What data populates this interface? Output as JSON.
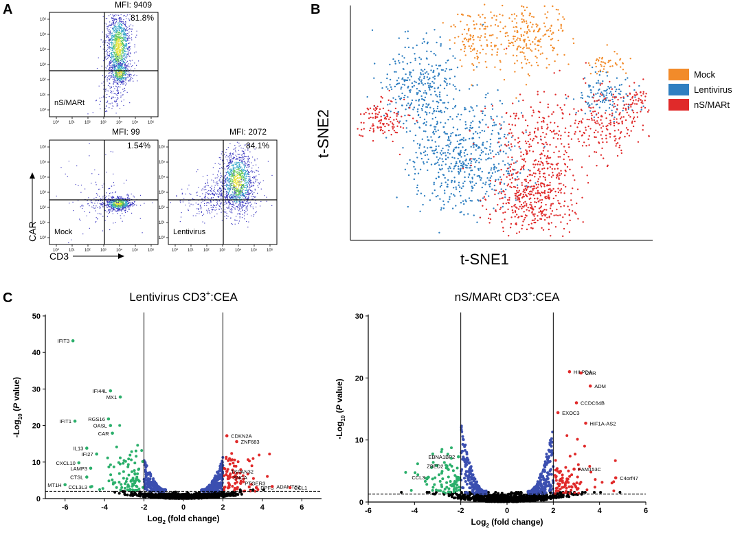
{
  "panels": {
    "a": {
      "label": "A",
      "plots": [
        {
          "key": "nsmart",
          "mfi": "MFI: 9409",
          "pct": "81.8%",
          "sample": "nS/MARt"
        },
        {
          "key": "mock",
          "mfi": "MFI: 99",
          "pct": "1.54%",
          "sample": "Mock"
        },
        {
          "key": "lenti",
          "mfi": "MFI: 2072",
          "pct": "84.1%",
          "sample": "Lentivirus"
        }
      ],
      "y_axis_label": "CAR",
      "x_axis_label": "CD3",
      "ticks": [
        "10⁰",
        "10¹",
        "10²",
        "10³",
        "10⁴",
        "10⁵",
        "10⁶"
      ]
    },
    "b": {
      "label": "B",
      "xlabel": "t-SNE1",
      "ylabel": "t-SNE2",
      "legend": [
        {
          "name": "Mock",
          "color": "#F28B2A"
        },
        {
          "name": "Lentivirus",
          "color": "#2F7FC1"
        },
        {
          "name": "nS/MARt",
          "color": "#E02A2A"
        }
      ]
    },
    "c": {
      "label": "C",
      "axis_ylabel": "-Log10 (P value)",
      "axis_xlabel": "Log2 (fold change)"
    }
  },
  "colors": {
    "up": "#E02A2A",
    "down": "#2BAF6B",
    "ns_fc": "#3B4FB0",
    "ns": "#000000"
  },
  "chart_data": [
    {
      "type": "scatter",
      "title": "Lentivirus CD3+:CEA",
      "xlabel": "Log2 (fold change)",
      "ylabel": "-Log10 (P value)",
      "xlim": [
        -7,
        7
      ],
      "ylim": [
        0,
        50
      ],
      "xticks": [
        -6,
        -4,
        -2,
        0,
        2,
        4,
        6
      ],
      "yticks": [
        0,
        10,
        20,
        30,
        40,
        50
      ],
      "fc_threshold": [
        -2,
        2
      ],
      "p_threshold": 2,
      "genes": [
        {
          "name": "IFIT3",
          "x": -5.6,
          "y": 43.2,
          "dir": "down"
        },
        {
          "name": "IFI44L",
          "x": -3.7,
          "y": 29.5,
          "dir": "down"
        },
        {
          "name": "MX1",
          "x": -3.2,
          "y": 27.8,
          "dir": "down"
        },
        {
          "name": "IFIT1",
          "x": -5.5,
          "y": 21.2,
          "dir": "down"
        },
        {
          "name": "RGS16",
          "x": -3.8,
          "y": 21.8,
          "dir": "down"
        },
        {
          "name": "OASL",
          "x": -3.7,
          "y": 20.0,
          "dir": "down"
        },
        {
          "name": "CAR",
          "x": -3.6,
          "y": 17.9,
          "dir": "down"
        },
        {
          "name": "IL13",
          "x": -4.9,
          "y": 13.8,
          "dir": "down"
        },
        {
          "name": "IFI27",
          "x": -4.4,
          "y": 12.2,
          "dir": "down"
        },
        {
          "name": "CXCL10",
          "x": -5.3,
          "y": 9.8,
          "dir": "down"
        },
        {
          "name": "LAMP3",
          "x": -4.7,
          "y": 8.3,
          "dir": "down"
        },
        {
          "name": "CTSL",
          "x": -4.9,
          "y": 5.9,
          "dir": "down"
        },
        {
          "name": "MT1H",
          "x": -6.0,
          "y": 3.8,
          "dir": "down"
        },
        {
          "name": "CCL3L3",
          "x": -4.7,
          "y": 3.2,
          "dir": "down"
        },
        {
          "name": "CDKN2A",
          "x": 2.2,
          "y": 17.2,
          "dir": "up"
        },
        {
          "name": "ZNF683",
          "x": 2.7,
          "y": 15.6,
          "dir": "up"
        },
        {
          "name": "TSPAN32",
          "x": 2.2,
          "y": 7.4,
          "dir": "up"
        },
        {
          "name": "SNCA",
          "x": 2.3,
          "y": 5.8,
          "dir": "up"
        },
        {
          "name": "PTGER3",
          "x": 2.9,
          "y": 4.2,
          "dir": "up"
        },
        {
          "name": "DPF3",
          "x": 3.7,
          "y": 3.0,
          "dir": "up"
        },
        {
          "name": "ADAMTS1",
          "x": 4.5,
          "y": 3.3,
          "dir": "up"
        },
        {
          "name": "CCL1",
          "x": 5.4,
          "y": 3.0,
          "dir": "up"
        }
      ]
    },
    {
      "type": "scatter",
      "title": "nS/MARt CD3+:CEA",
      "xlabel": "Log2 (fold change)",
      "ylabel": "-Log10 (P value)",
      "xlim": [
        -6,
        6
      ],
      "ylim": [
        0,
        30
      ],
      "xticks": [
        -6,
        -4,
        -2,
        0,
        2,
        4,
        6
      ],
      "yticks": [
        0,
        10,
        20,
        30
      ],
      "fc_threshold": [
        -2,
        2
      ],
      "p_threshold": 1.3,
      "genes": [
        {
          "name": "HILPDA",
          "x": 2.7,
          "y": 21.0,
          "dir": "up"
        },
        {
          "name": "CAR",
          "x": 3.2,
          "y": 20.8,
          "dir": "up"
        },
        {
          "name": "ADM",
          "x": 3.6,
          "y": 18.7,
          "dir": "up"
        },
        {
          "name": "CCDC64B",
          "x": 3.0,
          "y": 16.0,
          "dir": "up"
        },
        {
          "name": "EXOC3",
          "x": 2.2,
          "y": 14.4,
          "dir": "up"
        },
        {
          "name": "HIF1A-AS2",
          "x": 3.4,
          "y": 12.7,
          "dir": "up"
        },
        {
          "name": "FAM153C",
          "x": 2.9,
          "y": 5.3,
          "dir": "up"
        },
        {
          "name": "C4orf47",
          "x": 4.7,
          "y": 3.9,
          "dir": "up"
        },
        {
          "name": "EBNA1BP2",
          "x": -2.1,
          "y": 7.3,
          "dir": "down"
        },
        {
          "name": "ZBED2",
          "x": -2.6,
          "y": 5.8,
          "dir": "down"
        },
        {
          "name": "CCL3",
          "x": -3.4,
          "y": 4.0,
          "dir": "down"
        }
      ]
    }
  ]
}
